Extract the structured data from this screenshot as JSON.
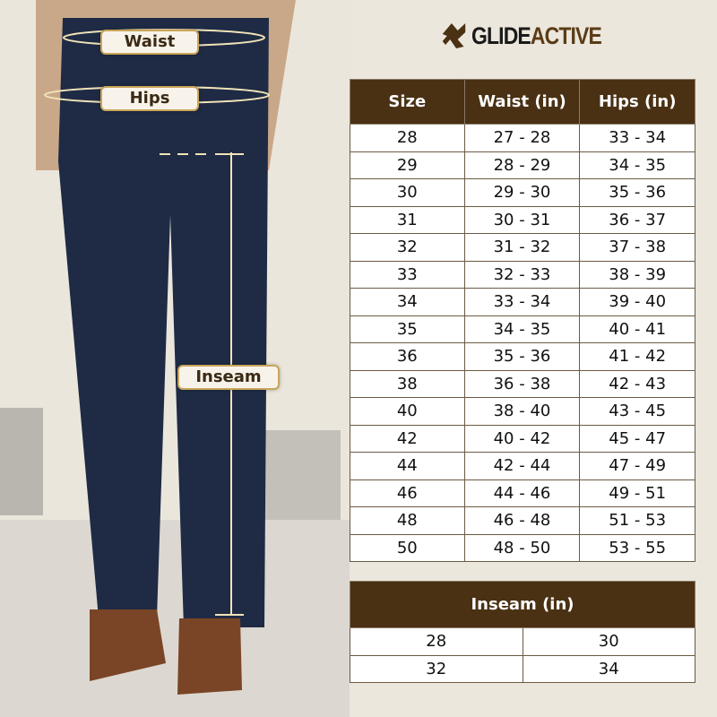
{
  "brand": {
    "name_part1": "GLIDE",
    "name_part2": "ACTIVE",
    "accent": "#4a3114"
  },
  "labels": {
    "waist": "Waist",
    "hips": "Hips",
    "inseam": "Inseam"
  },
  "size_table": {
    "headers": [
      "Size",
      "Waist (in)",
      "Hips (in)"
    ],
    "rows": [
      [
        "28",
        "27 - 28",
        "33 - 34"
      ],
      [
        "29",
        "28 - 29",
        "34 - 35"
      ],
      [
        "30",
        "29 - 30",
        "35 - 36"
      ],
      [
        "31",
        "30 - 31",
        "36 - 37"
      ],
      [
        "32",
        "31 - 32",
        "37 - 38"
      ],
      [
        "33",
        "32 - 33",
        "38 - 39"
      ],
      [
        "34",
        "33 - 34",
        "39 - 40"
      ],
      [
        "35",
        "34 - 35",
        "40 - 41"
      ],
      [
        "36",
        "35 - 36",
        "41 - 42"
      ],
      [
        "38",
        "36 - 38",
        "42 - 43"
      ],
      [
        "40",
        "38 - 40",
        "43 - 45"
      ],
      [
        "42",
        "40 - 42",
        "45 - 47"
      ],
      [
        "44",
        "42 - 44",
        "47 - 49"
      ],
      [
        "46",
        "44 - 46",
        "49 - 51"
      ],
      [
        "48",
        "46 - 48",
        "51 - 53"
      ],
      [
        "50",
        "48 - 50",
        "53 - 55"
      ]
    ]
  },
  "inseam_table": {
    "header": "Inseam (in)",
    "rows": [
      [
        "28",
        "30"
      ],
      [
        "32",
        "34"
      ]
    ]
  }
}
